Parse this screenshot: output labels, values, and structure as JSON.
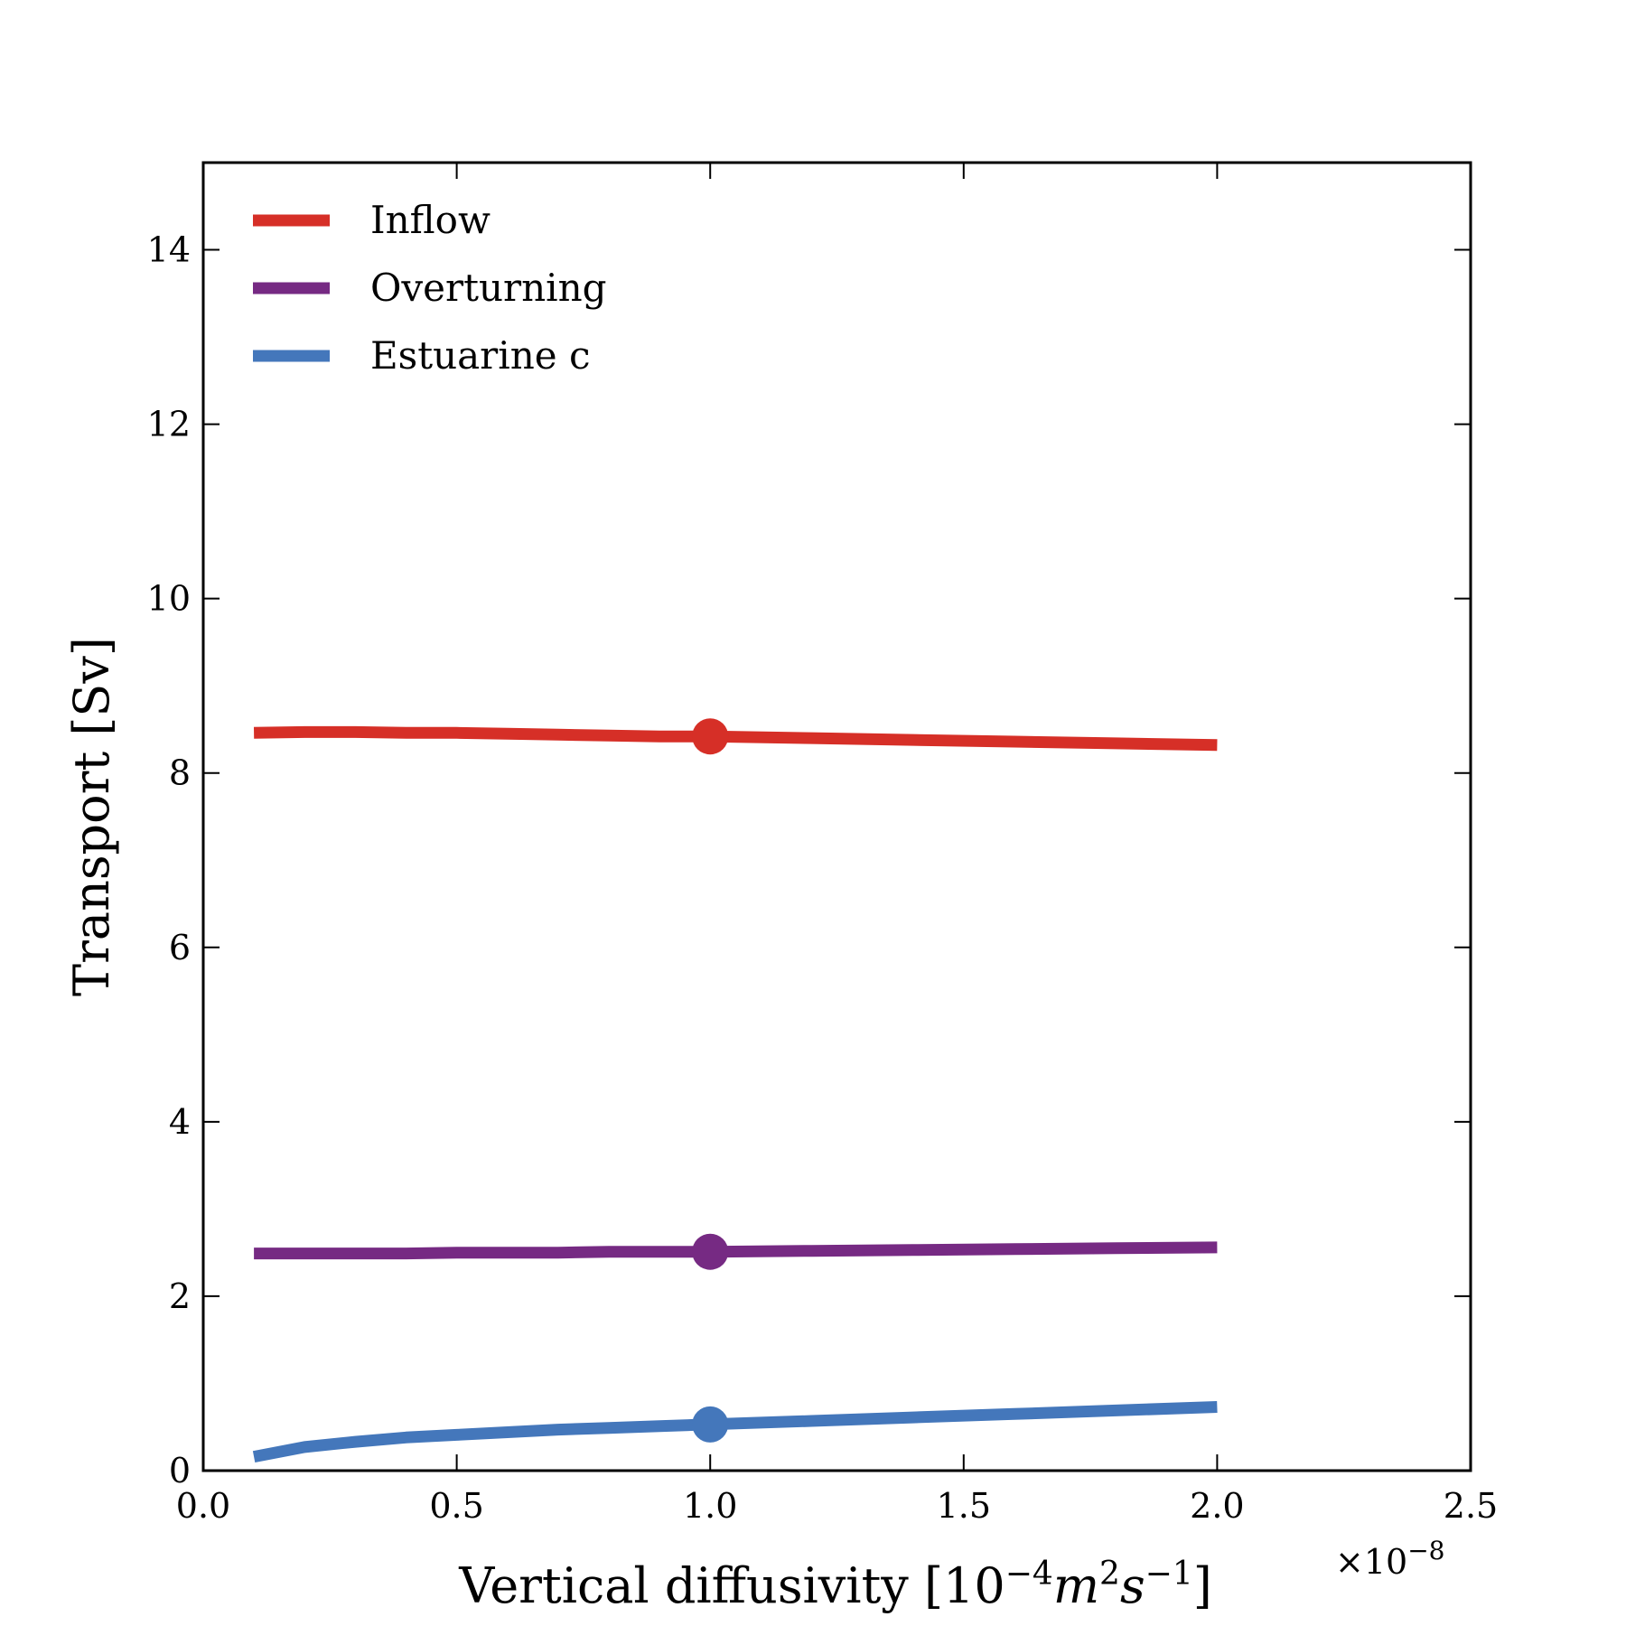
{
  "chart_data": {
    "type": "line",
    "title": "",
    "xlabel": "Vertical diffusivity [10",
    "xlabel_parts": {
      "base": "Vertical diffusivity [10",
      "exp1": "−4",
      "m": "m",
      "exp2": "2",
      "s": "s",
      "exp3": "−1",
      "close": "]"
    },
    "ylabel": "Transport [Sv]",
    "x_offset_text": "×10",
    "x_offset_exp": "−8",
    "xlim": [
      0.0,
      2.5
    ],
    "ylim": [
      0,
      15
    ],
    "xticks": [
      0.0,
      0.5,
      1.0,
      1.5,
      2.0,
      2.5
    ],
    "xtick_labels": [
      "0.0",
      "0.5",
      "1.0",
      "1.5",
      "2.0",
      "2.5"
    ],
    "yticks": [
      0,
      2,
      4,
      6,
      8,
      10,
      12,
      14
    ],
    "ytick_labels": [
      "0",
      "2",
      "4",
      "6",
      "8",
      "10",
      "12",
      "14"
    ],
    "grid": false,
    "legend_position": "top-left",
    "x": [
      0.1,
      0.2,
      0.3,
      0.4,
      0.5,
      0.6,
      0.7,
      0.8,
      0.9,
      1.0,
      1.2,
      1.4,
      1.6,
      1.8,
      2.0
    ],
    "series": [
      {
        "name": "Inflow",
        "color": "#d62f27",
        "values": [
          8.46,
          8.47,
          8.47,
          8.46,
          8.46,
          8.45,
          8.44,
          8.43,
          8.42,
          8.42,
          8.4,
          8.38,
          8.36,
          8.34,
          8.32
        ],
        "marker": {
          "x": 1.0,
          "y": 8.42
        }
      },
      {
        "name": "Overturning",
        "color": "#762a83",
        "values": [
          2.49,
          2.49,
          2.49,
          2.49,
          2.5,
          2.5,
          2.5,
          2.51,
          2.51,
          2.51,
          2.52,
          2.53,
          2.54,
          2.55,
          2.56
        ],
        "marker": {
          "x": 1.0,
          "y": 2.51
        }
      },
      {
        "name": "Estuarine c",
        "color": "#4477bb",
        "values": [
          0.16,
          0.27,
          0.33,
          0.38,
          0.41,
          0.44,
          0.47,
          0.49,
          0.51,
          0.53,
          0.57,
          0.61,
          0.65,
          0.69,
          0.73
        ],
        "marker": {
          "x": 1.0,
          "y": 0.53
        }
      }
    ]
  }
}
